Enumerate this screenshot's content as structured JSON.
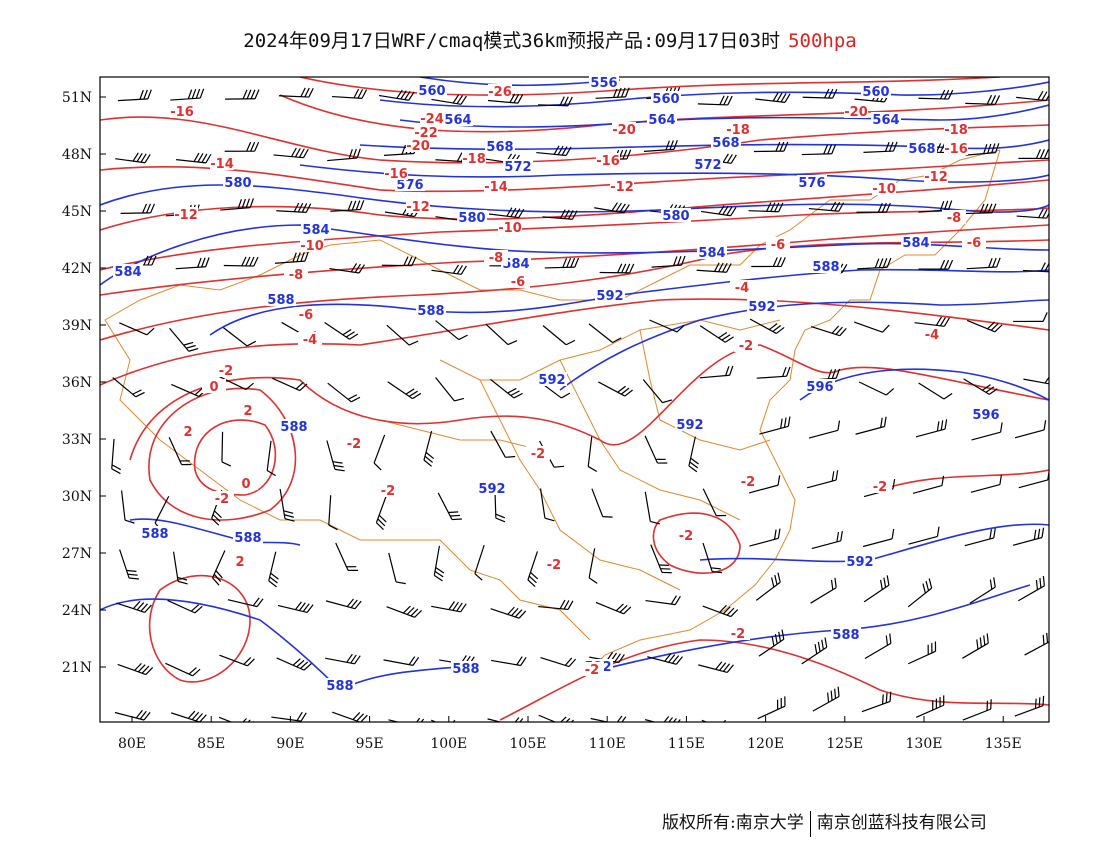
{
  "title": {
    "main": "2024年09月17日WRF/cmaq模式36km预报产品:09月17日03时",
    "level": "500hpa"
  },
  "colors": {
    "height_contour": "#2233dd",
    "temp_contour": "#e03030",
    "border": "#e08a30",
    "barb": "#000000"
  },
  "axes": {
    "lat_labels": [
      "51N",
      "48N",
      "45N",
      "42N",
      "39N",
      "36N",
      "33N",
      "30N",
      "27N",
      "24N",
      "21N"
    ],
    "lon_labels": [
      "80E",
      "85E",
      "90E",
      "95E",
      "100E",
      "105E",
      "110E",
      "115E",
      "120E",
      "125E",
      "130E",
      "135E"
    ]
  },
  "height_labels": [
    "556",
    "560",
    "564",
    "568",
    "572",
    "576",
    "580",
    "584",
    "588",
    "592",
    "596"
  ],
  "temp_labels": [
    "-26",
    "-24",
    "-22",
    "-20",
    "-18",
    "-16",
    "-14",
    "-12",
    "-10",
    "-8",
    "-6",
    "-4",
    "-2",
    "0",
    "2"
  ],
  "credit": {
    "left": "版权所有:南京大学",
    "right": "南京创蓝科技有限公司"
  }
}
